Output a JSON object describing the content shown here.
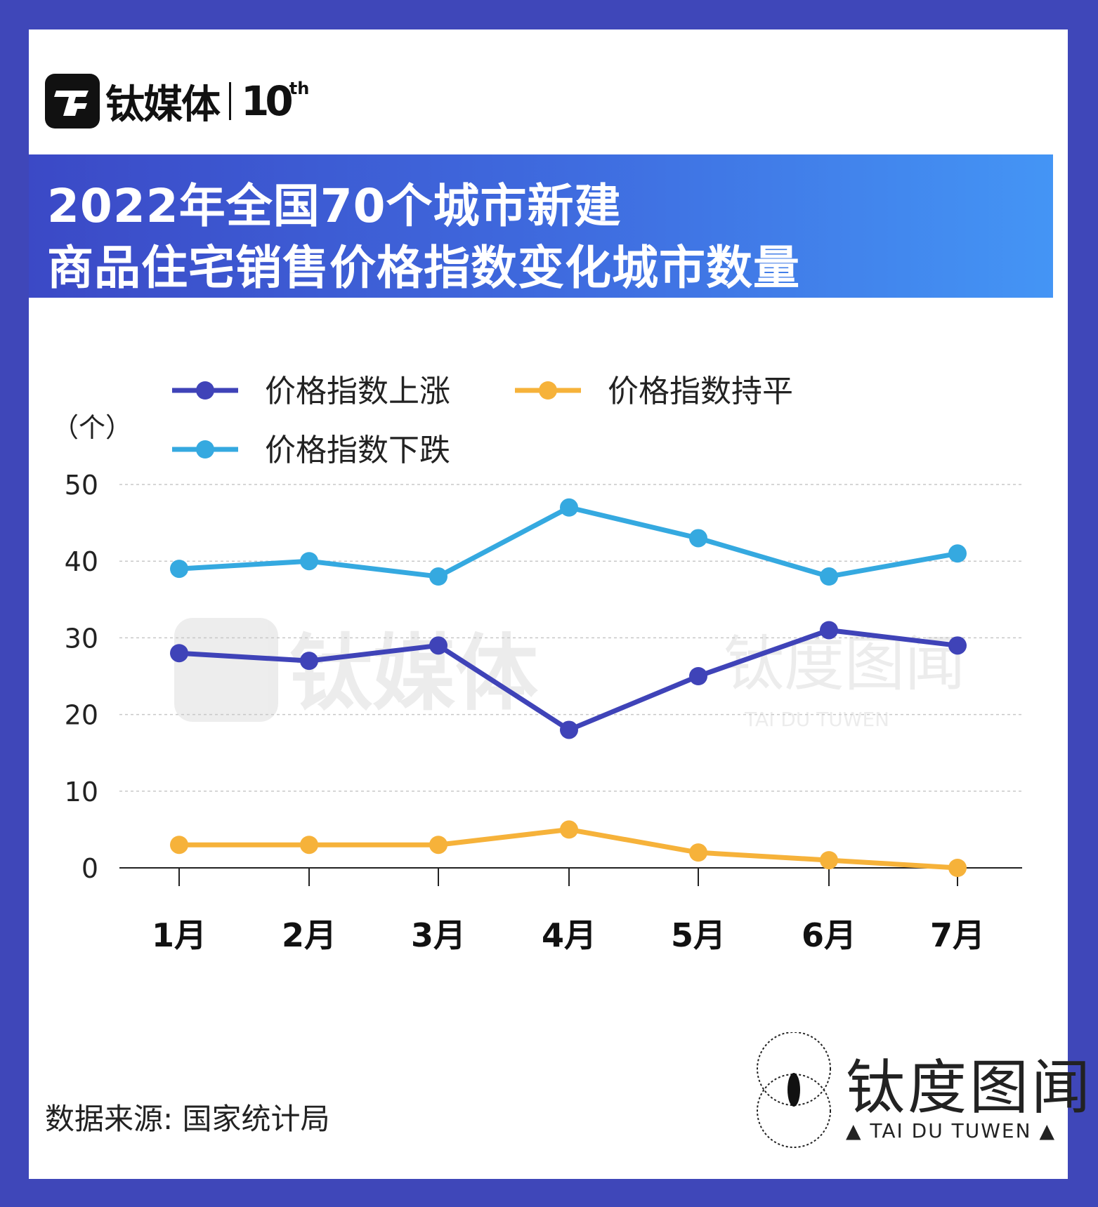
{
  "brand": {
    "logo_icon": "tmt-logo-icon",
    "name": "钛媒体",
    "anniversary_num": "10",
    "anniversary_suffix": "th"
  },
  "title": {
    "line1": "2022年全国70个城市新建",
    "line2": "商品住宅销售价格指数变化城市数量"
  },
  "chart_data": {
    "type": "line",
    "ylabel": "（个）",
    "xlabel": "",
    "categories": [
      "1月",
      "2月",
      "3月",
      "4月",
      "5月",
      "6月",
      "7月"
    ],
    "yticks": [
      "0",
      "10",
      "20",
      "30",
      "40",
      "50"
    ],
    "ylim": [
      0,
      50
    ],
    "grid": true,
    "legend_position": "top-left",
    "series": [
      {
        "name": "价格指数上涨",
        "color": "#3f43b8",
        "values": [
          28,
          27,
          29,
          18,
          25,
          31,
          29
        ]
      },
      {
        "name": "价格指数持平",
        "color": "#f6b23a",
        "values": [
          3,
          3,
          3,
          5,
          2,
          1,
          0
        ]
      },
      {
        "name": "价格指数下跌",
        "color": "#35a9e0",
        "values": [
          39,
          40,
          38,
          47,
          43,
          38,
          41
        ]
      }
    ]
  },
  "source": "数据来源: 国家统计局",
  "watermark": {
    "brand": "钛媒体",
    "sub_brand": "钛度图闻",
    "sub_brand_en": "TAI DU TUWEN"
  },
  "footer_brand": {
    "name": "钛度图闻",
    "sub": "▲ TAI DU TUWEN ▲",
    "icon": "eye-circle-icon"
  }
}
